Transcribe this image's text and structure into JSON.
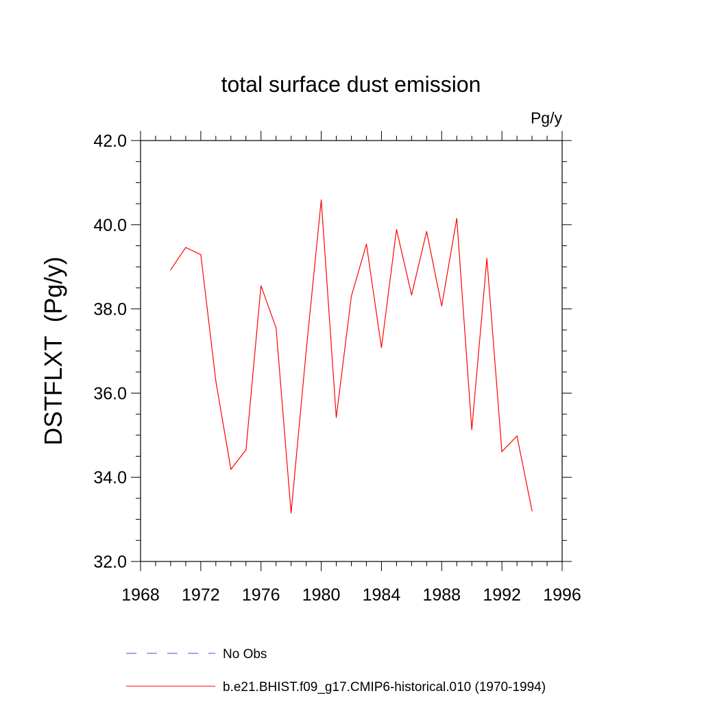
{
  "chart_data": {
    "type": "line",
    "title": "total surface dust emission",
    "units_label": "Pg/y",
    "ylabel": "DSTFLXT  (Pg/y)",
    "xlabel": "",
    "xlim": [
      1968,
      1996
    ],
    "ylim": [
      32.0,
      42.0
    ],
    "x_ticks": [
      1968,
      1972,
      1976,
      1980,
      1984,
      1988,
      1992,
      1996
    ],
    "x_minor_step": 1,
    "y_ticks": [
      32.0,
      34.0,
      36.0,
      38.0,
      40.0,
      42.0
    ],
    "y_minor_step": 0.5,
    "grid": false,
    "series": [
      {
        "name": "b.e21.BHIST.f09_g17.CMIP6-historical.010 (1970-1994)",
        "color": "#ff0000",
        "style": "solid",
        "x": [
          1970,
          1971,
          1972,
          1973,
          1974,
          1975,
          1976,
          1977,
          1978,
          1979,
          1980,
          1981,
          1982,
          1983,
          1984,
          1985,
          1986,
          1987,
          1988,
          1989,
          1990,
          1991,
          1992,
          1993,
          1994
        ],
        "values": [
          38.93,
          39.46,
          39.29,
          36.29,
          34.19,
          34.65,
          38.55,
          37.55,
          33.15,
          37.0,
          40.59,
          35.42,
          38.3,
          39.54,
          37.08,
          39.89,
          38.33,
          39.84,
          38.07,
          40.15,
          35.13,
          39.2,
          34.61,
          34.98,
          33.2
        ]
      }
    ],
    "legend": {
      "placement": "bottom",
      "entries": [
        {
          "label": "No Obs",
          "color": "#4d4dc8",
          "style": "dashed"
        },
        {
          "label": "b.e21.BHIST.f09_g17.CMIP6-historical.010 (1970-1994)",
          "color": "#ff0000",
          "style": "solid"
        }
      ]
    }
  }
}
